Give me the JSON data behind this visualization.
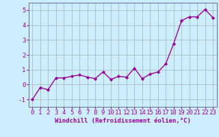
{
  "x": [
    0,
    1,
    2,
    3,
    4,
    5,
    6,
    7,
    8,
    9,
    10,
    11,
    12,
    13,
    14,
    15,
    16,
    17,
    18,
    19,
    20,
    21,
    22,
    23
  ],
  "y": [
    -1.0,
    -0.2,
    -0.35,
    0.45,
    0.45,
    0.55,
    0.65,
    0.5,
    0.4,
    0.85,
    0.35,
    0.55,
    0.5,
    1.1,
    0.4,
    0.7,
    0.85,
    1.4,
    2.75,
    4.3,
    4.55,
    4.55,
    5.05,
    4.5
  ],
  "line_color": "#990099",
  "marker": "D",
  "marker_size": 2.2,
  "bg_color": "#cceeff",
  "grid_color": "#aabbbb",
  "xlabel": "Windchill (Refroidissement éolien,°C)",
  "xlabel_fontsize": 6.5,
  "ylabel_ticks": [
    -1,
    0,
    1,
    2,
    3,
    4,
    5
  ],
  "xlim": [
    -0.5,
    23.5
  ],
  "ylim": [
    -1.5,
    5.5
  ],
  "tick_fontsize": 6.5,
  "line_width": 1.0,
  "tick_color": "#990099",
  "spine_color": "#777799"
}
